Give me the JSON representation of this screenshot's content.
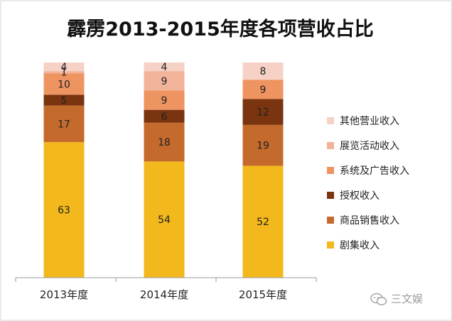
{
  "chart_data": {
    "type": "bar",
    "stacked": true,
    "title": "霹雳2013-2015年度各项营收占比",
    "categories": [
      "2013年度",
      "2014年度",
      "2015年度"
    ],
    "series": [
      {
        "name": "剧集收入",
        "values": [
          63,
          54,
          52
        ],
        "color": "#F2B81C"
      },
      {
        "name": "商品销售收入",
        "values": [
          17,
          18,
          19
        ],
        "color": "#C46A2D"
      },
      {
        "name": "授权收入",
        "values": [
          5,
          6,
          12
        ],
        "color": "#7A3410"
      },
      {
        "name": "系统及广告收入",
        "values": [
          10,
          9,
          9
        ],
        "color": "#EE9460"
      },
      {
        "name": "展览活动收入",
        "values": [
          1,
          9,
          0
        ],
        "color": "#F1B49B"
      },
      {
        "name": "其他营业收入",
        "values": [
          4,
          4,
          8
        ],
        "color": "#F6D2C6"
      }
    ],
    "ylim": [
      0,
      100
    ],
    "grid": false,
    "legend": "right"
  },
  "watermark": {
    "icon": "wechat-icon",
    "text": "三文娱"
  }
}
